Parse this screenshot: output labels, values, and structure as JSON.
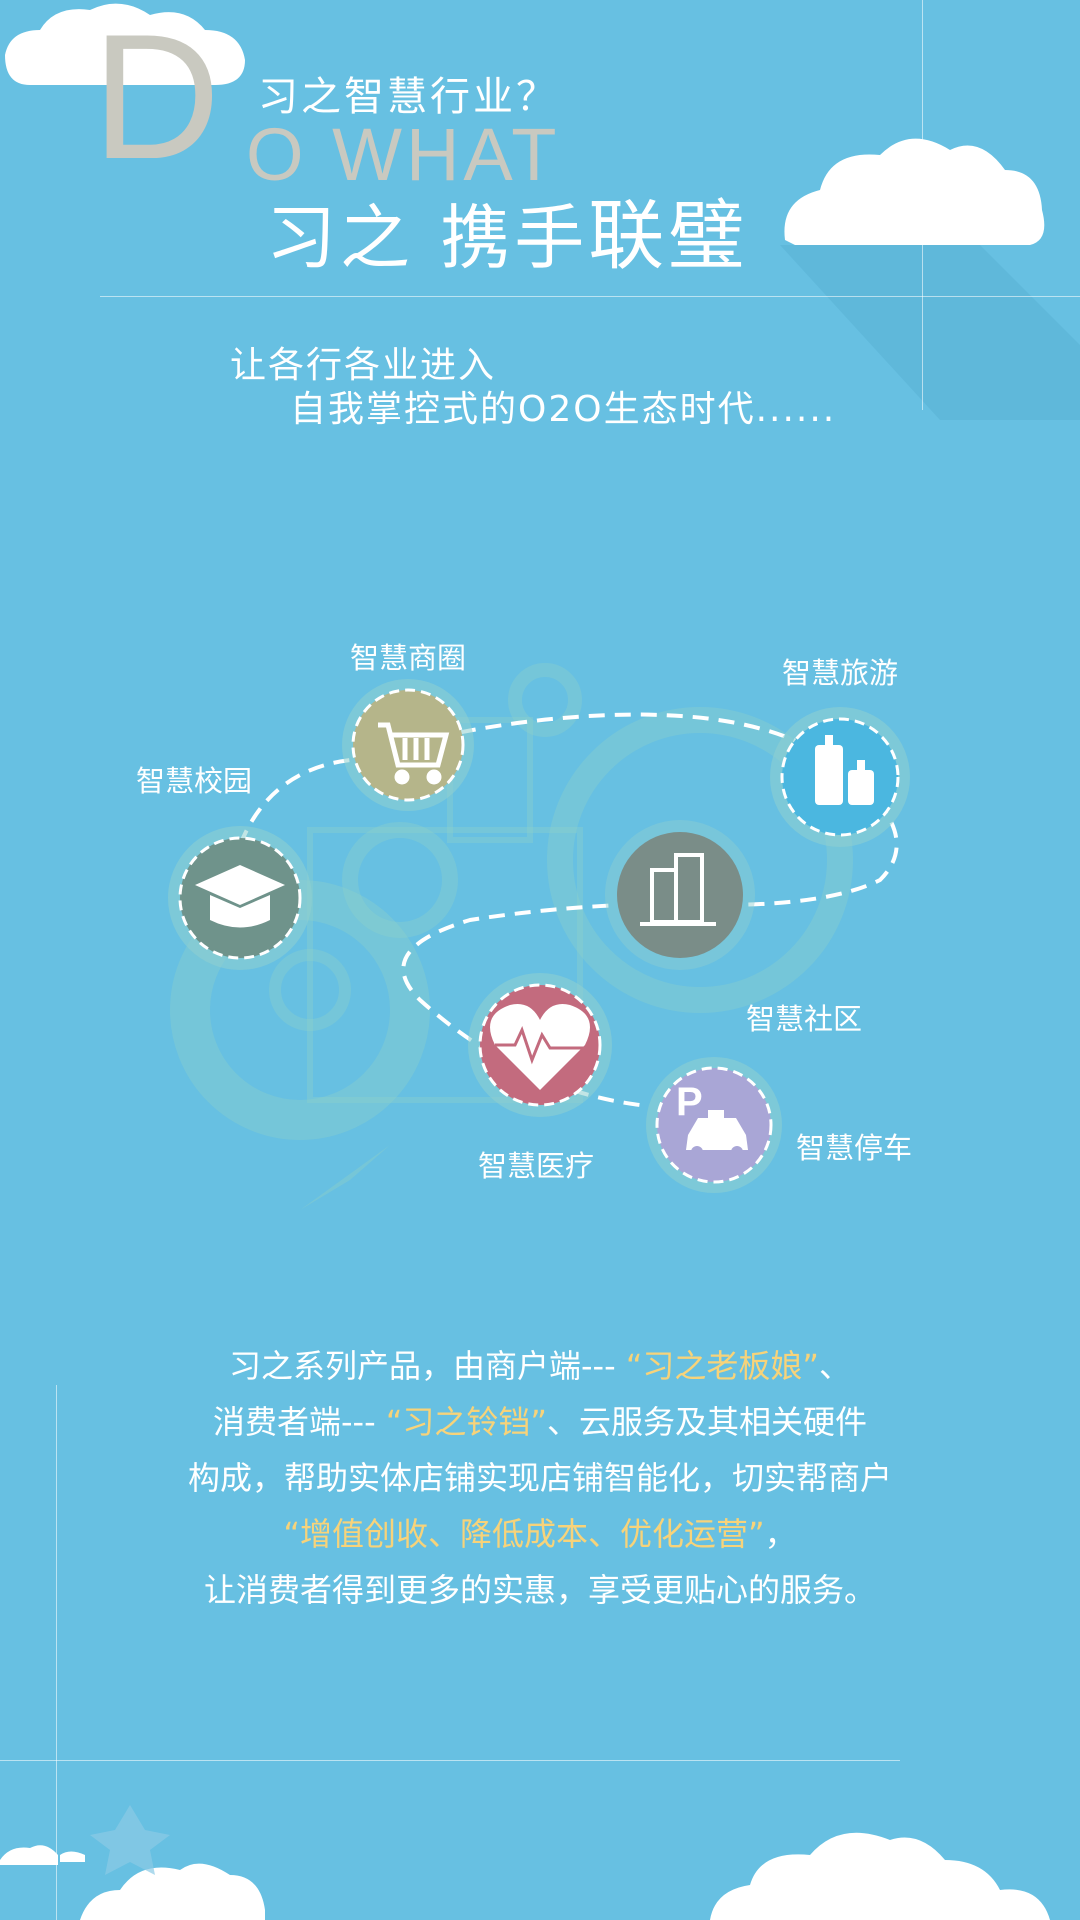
{
  "header": {
    "letter_d": "D",
    "question": "习之智慧行业？",
    "do_what": "O WHAT",
    "slogan_part1": "习之 携手",
    "slogan_part2": "联璧"
  },
  "subtitle": {
    "line1": "让各行各业进入",
    "line2": "自我掌控式的O2O生态时代......"
  },
  "nodes": {
    "shopping": {
      "label": "智慧商圈",
      "icon": "shopping-cart-icon",
      "color": "#b5b58a"
    },
    "travel": {
      "label": "智慧旅游",
      "icon": "luggage-icon",
      "color": "#4bb7e0"
    },
    "campus": {
      "label": "智慧校园",
      "icon": "graduation-cap-icon",
      "color": "#6f938b"
    },
    "community": {
      "label": "智慧社区",
      "icon": "buildings-icon",
      "color": "#7a8d88"
    },
    "medical": {
      "label": "智慧医疗",
      "icon": "heart-pulse-icon",
      "color": "#c36b7e"
    },
    "parking": {
      "label": "智慧停车",
      "icon": "parking-taxi-icon",
      "color": "#a9a6d6"
    }
  },
  "description": {
    "line1_pre": "习之系列产品，由商户端--- ",
    "line1_hl": "“习之老板娘”",
    "line1_post": "、",
    "line2_pre": "消费者端--- ",
    "line2_hl": "“习之铃铛”",
    "line2_post": "、云服务及其相关硬件",
    "line3": "构成，帮助实体店铺实现店铺智能化，切实帮商户",
    "line4_hl": "“增值创收、降低成本、优化运营”",
    "line4_post": "，",
    "line5": "让消费者得到更多的实惠，享受更贴心的服务。"
  },
  "colors": {
    "background": "#67c0e2",
    "highlight": "#f7d37a",
    "title_gray": "#c9c9c0"
  }
}
